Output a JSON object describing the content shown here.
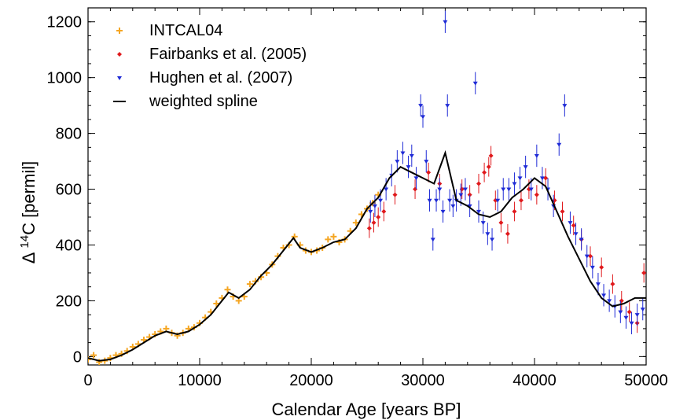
{
  "chart_data": {
    "type": "scatter",
    "xlabel": "Calendar Age [years BP]",
    "ylabel": {
      "prefix": "Δ ",
      "sup": "14",
      "suffix": "C [permil]"
    },
    "xlim": [
      0,
      50000
    ],
    "ylim": [
      -30,
      1250
    ],
    "x_ticks": [
      0,
      10000,
      20000,
      30000,
      40000,
      50000
    ],
    "y_ticks": [
      0,
      200,
      400,
      600,
      800,
      1000,
      1200
    ],
    "x_tick_labels": [
      "0",
      "10000",
      "20000",
      "30000",
      "40000",
      "50000"
    ],
    "y_tick_labels": [
      "0",
      "200",
      "400",
      "600",
      "800",
      "1000",
      "1200"
    ],
    "legend": {
      "position": "top-left",
      "entries": [
        {
          "label": "INTCAL04",
          "marker": "plus",
          "color": "#f5a623"
        },
        {
          "label": "Fairbanks et al. (2005)",
          "marker": "diamond",
          "color": "#e0191c"
        },
        {
          "label": "Hughen et al. (2007)",
          "marker": "triangle-down",
          "color": "#1f2bd6"
        },
        {
          "label": "weighted spline",
          "marker": "line",
          "color": "#000000"
        }
      ]
    },
    "series": [
      {
        "name": "INTCAL04",
        "color": "#f5a623",
        "x": [
          0,
          500,
          1000,
          1500,
          2000,
          2500,
          3000,
          3500,
          4000,
          4500,
          5000,
          5500,
          6000,
          6500,
          7000,
          7500,
          8000,
          8500,
          9000,
          9500,
          10000,
          10500,
          11000,
          11500,
          12000,
          12500,
          13000,
          13500,
          14000,
          14500,
          15000,
          15500,
          16000,
          16500,
          17000,
          17500,
          18000,
          18500,
          19000,
          19500,
          20000,
          20500,
          21000,
          21500,
          22000,
          22500,
          23000,
          23500,
          24000,
          24500,
          25000,
          25500,
          26000
        ],
        "y": [
          -10,
          5,
          -20,
          -15,
          -5,
          5,
          10,
          20,
          35,
          45,
          60,
          70,
          80,
          90,
          100,
          85,
          75,
          85,
          100,
          105,
          120,
          140,
          160,
          190,
          210,
          240,
          215,
          200,
          215,
          260,
          270,
          285,
          300,
          330,
          360,
          390,
          400,
          430,
          400,
          380,
          375,
          380,
          390,
          420,
          430,
          410,
          420,
          450,
          480,
          510,
          530,
          550,
          580
        ]
      },
      {
        "name": "Fairbanks et al. (2005)",
        "color": "#e0191c",
        "x": [
          25200,
          25600,
          26000,
          26500,
          27500,
          29300,
          30500,
          31500,
          33500,
          34200,
          35000,
          35500,
          35900,
          36100,
          36500,
          37000,
          37600,
          38200,
          38800,
          39500,
          40200,
          41000,
          41800,
          42500,
          43500,
          44200,
          45000,
          46000,
          47000,
          47800,
          48500,
          49200,
          49800
        ],
        "y": [
          460,
          480,
          500,
          520,
          580,
          600,
          660,
          620,
          600,
          580,
          620,
          660,
          680,
          720,
          560,
          480,
          440,
          520,
          560,
          600,
          580,
          640,
          560,
          520,
          470,
          420,
          360,
          320,
          260,
          200,
          160,
          120,
          300
        ]
      },
      {
        "name": "Hughen et al. (2007)",
        "color": "#1f2bd6",
        "x": [
          25300,
          25700,
          26200,
          26700,
          27200,
          27700,
          28200,
          28700,
          29000,
          29400,
          29800,
          30000,
          30300,
          30600,
          30900,
          31200,
          31500,
          31800,
          32000,
          32200,
          32400,
          32700,
          33000,
          33400,
          33800,
          34200,
          34700,
          35000,
          35400,
          35800,
          36200,
          36700,
          37200,
          37700,
          38200,
          38700,
          39200,
          39700,
          40200,
          40700,
          41200,
          41700,
          42200,
          42700,
          43200,
          43700,
          44200,
          44700,
          45200,
          45700,
          46200,
          46700,
          47200,
          47700,
          48200,
          48700,
          49200,
          49700
        ],
        "y": [
          520,
          540,
          560,
          600,
          650,
          700,
          730,
          680,
          720,
          640,
          900,
          860,
          700,
          560,
          420,
          560,
          600,
          520,
          1200,
          900,
          560,
          540,
          560,
          580,
          600,
          540,
          980,
          520,
          480,
          440,
          420,
          560,
          600,
          600,
          620,
          640,
          680,
          600,
          720,
          640,
          600,
          540,
          760,
          900,
          480,
          440,
          420,
          360,
          320,
          260,
          220,
          200,
          180,
          160,
          140,
          120,
          150,
          170
        ]
      },
      {
        "name": "weighted spline",
        "color": "#000000",
        "x": [
          0,
          1000,
          2000,
          3000,
          4000,
          5000,
          6000,
          7000,
          8000,
          9000,
          10000,
          11000,
          12000,
          12600,
          13500,
          14500,
          15500,
          16500,
          17500,
          18400,
          19000,
          20000,
          21000,
          22000,
          23000,
          24000,
          25000,
          26000,
          27000,
          28000,
          29000,
          30000,
          31000,
          32000,
          33000,
          34000,
          35000,
          36000,
          37000,
          38000,
          39000,
          40000,
          41000,
          42000,
          43000,
          44000,
          45000,
          46000,
          47000,
          48000,
          49000,
          50000
        ],
        "y": [
          -5,
          -15,
          -10,
          5,
          25,
          50,
          75,
          90,
          80,
          90,
          115,
          150,
          200,
          230,
          210,
          240,
          290,
          330,
          380,
          425,
          390,
          375,
          390,
          410,
          420,
          460,
          530,
          570,
          640,
          680,
          660,
          640,
          620,
          730,
          560,
          540,
          510,
          500,
          520,
          570,
          600,
          640,
          610,
          520,
          430,
          350,
          270,
          210,
          180,
          190,
          210,
          210
        ]
      }
    ]
  }
}
